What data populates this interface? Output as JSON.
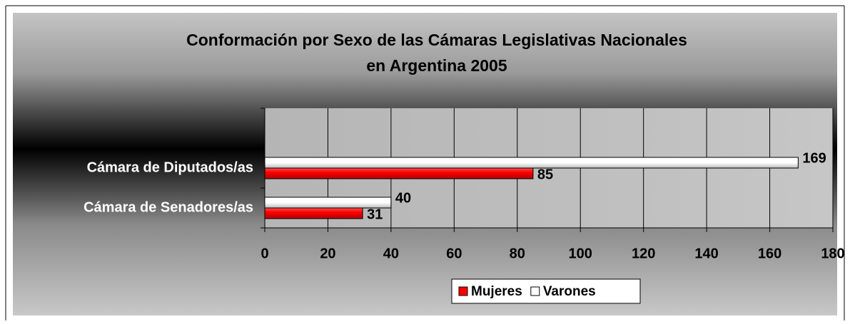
{
  "chart_data": {
    "type": "bar",
    "orientation": "horizontal",
    "title": [
      "Conformación por Sexo de las Cámaras Legislativas Nacionales",
      "en Argentina 2005"
    ],
    "categories": [
      null,
      "Cámara de Diputados/as",
      "Cámara de Senadores/as"
    ],
    "series": [
      {
        "name": "Varones",
        "color": "#ffffff",
        "values": [
          null,
          169,
          40
        ]
      },
      {
        "name": "Mujeres",
        "color": "#ff0000",
        "values": [
          null,
          85,
          31
        ]
      }
    ],
    "legend_order": [
      1,
      0
    ],
    "xlim": [
      0,
      180
    ],
    "xticks": [
      0,
      20,
      40,
      60,
      80,
      100,
      120,
      140,
      160,
      180
    ],
    "grid": true,
    "legend": "bottom"
  }
}
